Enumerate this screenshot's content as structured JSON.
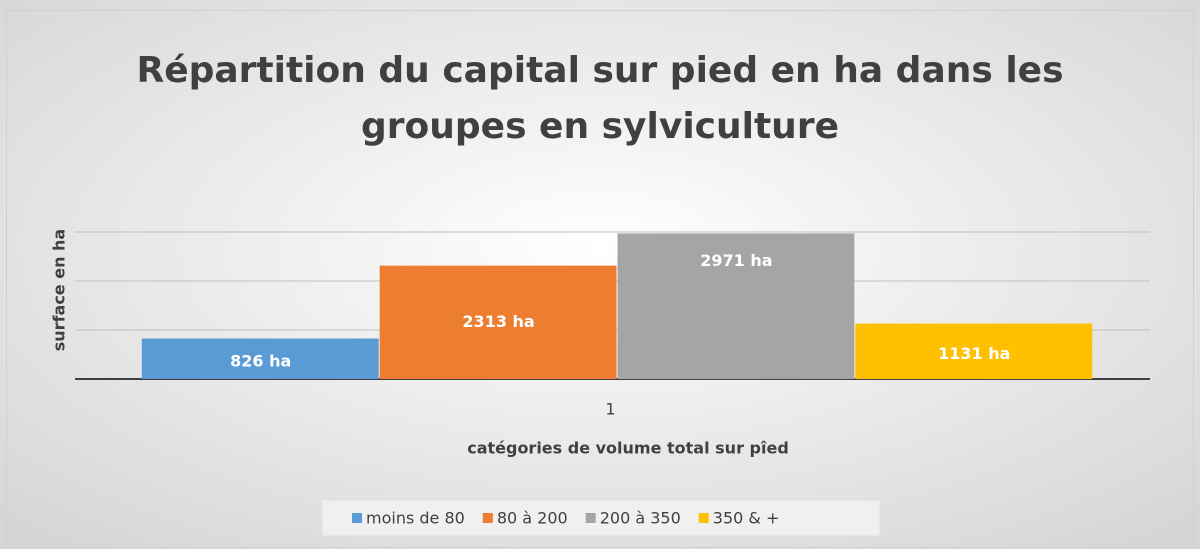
{
  "chart_data": {
    "type": "bar",
    "title": "Répartition du capital sur pied en ha dans les groupes en sylviculture",
    "xlabel": "catégories de volume total  sur pîed",
    "ylabel": "surface  en ha",
    "categories": [
      "1"
    ],
    "series": [
      {
        "name": "moins de 80",
        "color": "#5b9bd5",
        "values": [
          826
        ],
        "value_labels": [
          "826 ha"
        ]
      },
      {
        "name": "80 à 200",
        "color": "#ed7d31",
        "values": [
          2313
        ],
        "value_labels": [
          "2313 ha"
        ]
      },
      {
        "name": "200 à 350",
        "color": "#a5a5a5",
        "values": [
          2971
        ],
        "value_labels": [
          "2971 ha"
        ]
      },
      {
        "name": "350 & +",
        "color": "#ffc000",
        "values": [
          1131
        ],
        "value_labels": [
          "1131 ha"
        ]
      }
    ],
    "ylim": [
      0,
      3000
    ],
    "yticks": [
      0,
      1000,
      2000,
      3000
    ],
    "grid": true,
    "legend": "bottom"
  }
}
